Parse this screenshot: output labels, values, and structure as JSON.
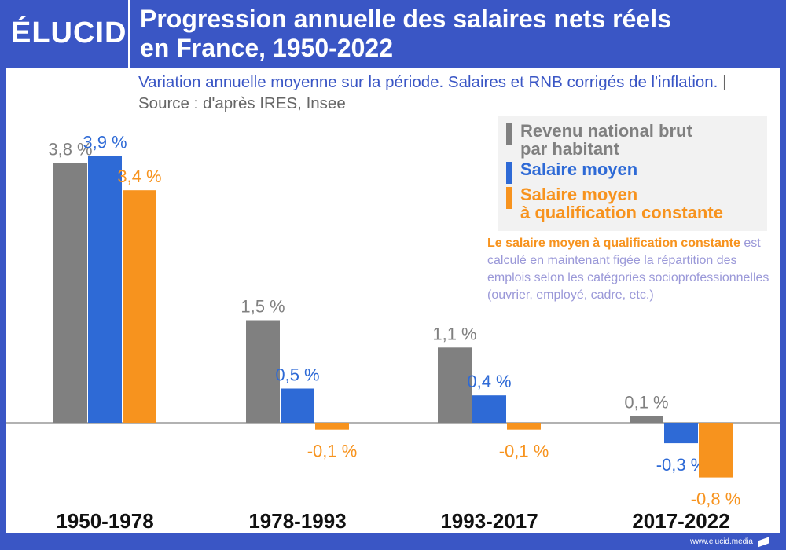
{
  "header": {
    "logo": "ÉLUCID",
    "title_line1": "Progression annuelle des salaires nets réels",
    "title_line2": "en France, 1950-2022"
  },
  "subtitle": {
    "text": "Variation annuelle moyenne sur la période. Salaires et RNB corrigés de l'inflation.",
    "separator": "|",
    "source": "Source : d'après IRES, Insee"
  },
  "note": {
    "highlight": "Le salaire moyen à qualification constante",
    "text": " est calculé en maintenant figée la répartition des emplois selon les catégories socioprofessionnelles (ouvrier, employé, cadre, etc.)"
  },
  "footer": {
    "url": "www.elucid.media"
  },
  "colors": {
    "header": "#3a56c5",
    "gray": "#808080",
    "blue": "#2e6ad6",
    "orange": "#f7931e"
  },
  "chart_data": {
    "type": "bar",
    "title": "Progression annuelle des salaires nets réels en France, 1950-2022",
    "categories": [
      "1950-1978",
      "1978-1993",
      "1993-2017",
      "2017-2022"
    ],
    "series": [
      {
        "name": "Revenu national brut par habitant",
        "color": "#808080",
        "values": [
          3.8,
          1.5,
          1.1,
          0.1
        ],
        "labels": [
          "3,8 %",
          "1,5 %",
          "1,1 %",
          "0,1 %"
        ]
      },
      {
        "name": "Salaire moyen",
        "color": "#2e6ad6",
        "values": [
          3.9,
          0.5,
          0.4,
          -0.3
        ],
        "labels": [
          "3,9 %",
          "0,5 %",
          "0,4 %",
          "-0,3 %"
        ]
      },
      {
        "name": "Salaire moyen à qualification constante",
        "color": "#f7931e",
        "values": [
          3.4,
          -0.1,
          -0.1,
          -0.8
        ],
        "labels": [
          "3,4 %",
          "-0,1 %",
          "-0,1 %",
          "-0,8 %"
        ]
      }
    ],
    "legend": [
      {
        "line1": "Revenu national brut",
        "line2": "par habitant",
        "color": "#808080"
      },
      {
        "line1": "Salaire moyen",
        "line2": "",
        "color": "#2e6ad6"
      },
      {
        "line1": "Salaire moyen",
        "line2": "à qualification constante",
        "color": "#f7931e"
      }
    ],
    "ylim": [
      -0.8,
      3.9
    ],
    "unit": "%"
  }
}
